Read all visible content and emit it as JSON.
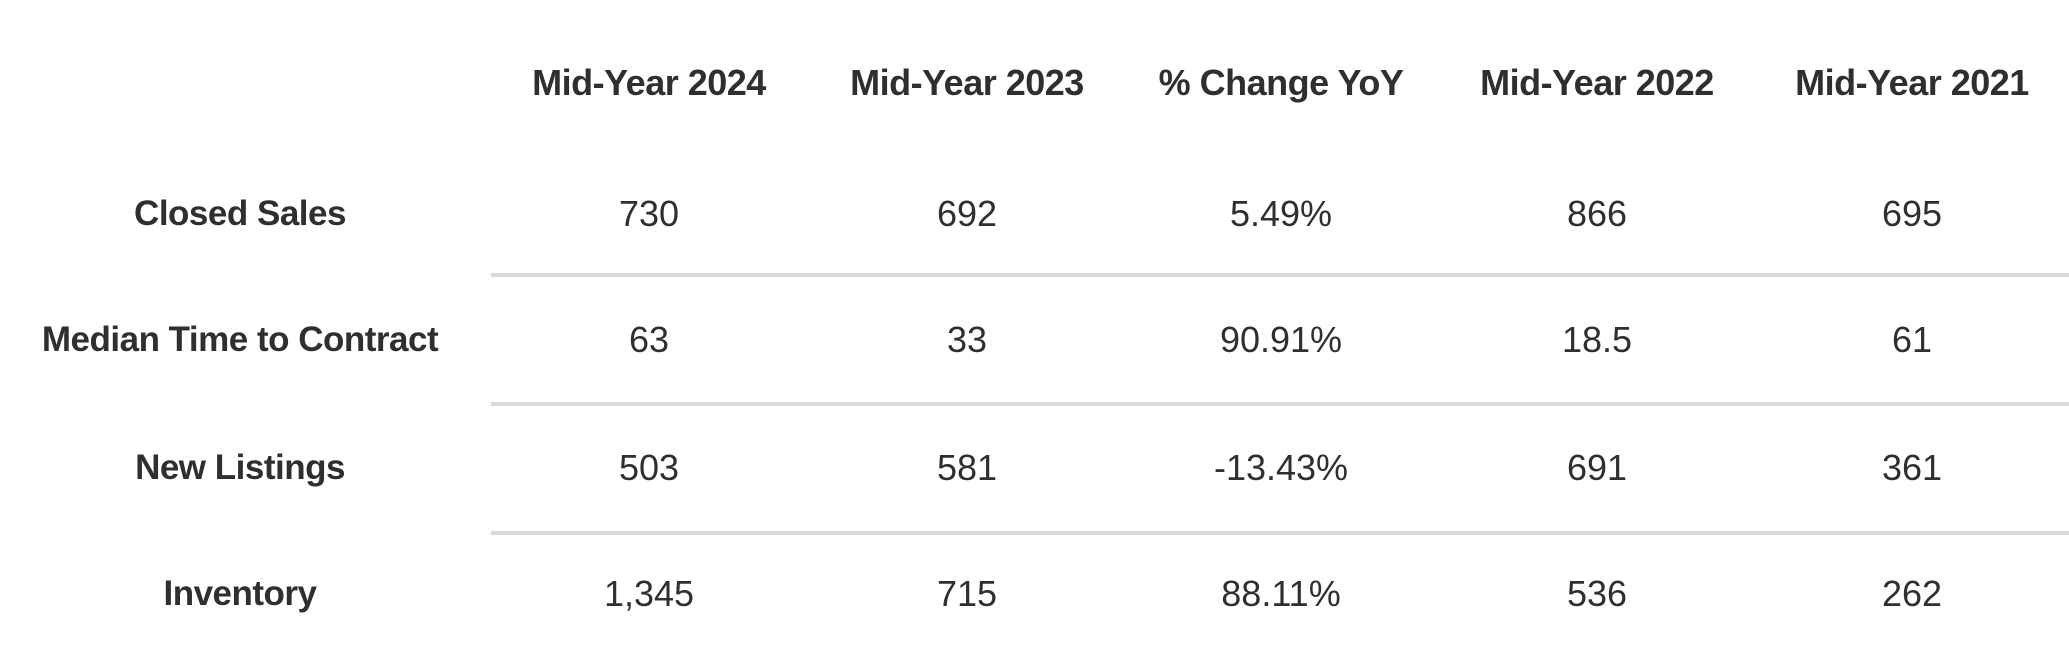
{
  "table": {
    "columns": [
      "Mid-Year 2024",
      "Mid-Year 2023",
      "% Change YoY",
      "Mid-Year 2022",
      "Mid-Year 2021"
    ],
    "rows": [
      {
        "label": "Closed Sales",
        "values": [
          "730",
          "692",
          "5.49%",
          "866",
          "695"
        ]
      },
      {
        "label": "Median Time to Contract",
        "values": [
          "63",
          "33",
          "90.91%",
          "18.5",
          "61"
        ]
      },
      {
        "label": "New Listings",
        "values": [
          "503",
          "581",
          "-13.43%",
          "691",
          "361"
        ]
      },
      {
        "label": "Inventory",
        "values": [
          "1,345",
          "715",
          "88.11%",
          "536",
          "262"
        ]
      }
    ]
  }
}
